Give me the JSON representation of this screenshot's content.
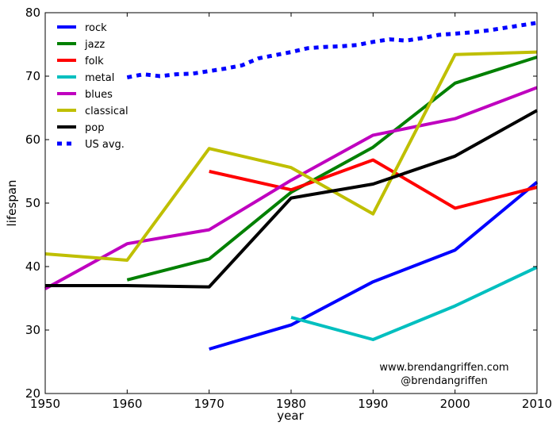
{
  "chart_data": {
    "type": "line",
    "title": "",
    "xlabel": "year",
    "ylabel": "lifespan",
    "xlim": [
      1950,
      2010
    ],
    "ylim": [
      20,
      80
    ],
    "xticks": [
      1950,
      1960,
      1970,
      1980,
      1990,
      2000,
      2010
    ],
    "yticks": [
      20,
      30,
      40,
      50,
      60,
      70,
      80
    ],
    "grid": false,
    "legend_position": "top-left",
    "annotations": [
      "www.brendangriffen.com",
      "@brendangriffen"
    ],
    "series": [
      {
        "name": "rock",
        "color": "#0000ff",
        "style": "solid",
        "x": [
          1970,
          1980,
          1990,
          2000,
          2010
        ],
        "y": [
          27.0,
          30.8,
          37.6,
          42.6,
          53.3
        ]
      },
      {
        "name": "jazz",
        "color": "#008000",
        "style": "solid",
        "x": [
          1960,
          1970,
          1980,
          1990,
          2000,
          2010
        ],
        "y": [
          37.9,
          41.2,
          51.7,
          58.8,
          68.9,
          73.0
        ]
      },
      {
        "name": "folk",
        "color": "#ff0000",
        "style": "solid",
        "x": [
          1970,
          1980,
          1990,
          2000,
          2010
        ],
        "y": [
          55.0,
          52.1,
          56.8,
          49.2,
          52.5
        ]
      },
      {
        "name": "metal",
        "color": "#00bfbf",
        "style": "solid",
        "x": [
          1980,
          1990,
          2000,
          2010
        ],
        "y": [
          32.0,
          28.5,
          33.8,
          39.9
        ]
      },
      {
        "name": "blues",
        "color": "#bf00bf",
        "style": "solid",
        "x": [
          1950,
          1960,
          1970,
          1980,
          1990,
          2000,
          2010
        ],
        "y": [
          36.5,
          43.6,
          45.8,
          53.6,
          60.7,
          63.3,
          68.2
        ]
      },
      {
        "name": "classical",
        "color": "#bfbf00",
        "style": "solid",
        "x": [
          1950,
          1960,
          1970,
          1980,
          1990,
          2000,
          2010
        ],
        "y": [
          42.0,
          41.0,
          58.6,
          55.6,
          48.3,
          73.4,
          73.8
        ]
      },
      {
        "name": "pop",
        "color": "#000000",
        "style": "solid",
        "x": [
          1950,
          1960,
          1970,
          1980,
          1990,
          2000,
          2010
        ],
        "y": [
          37.0,
          37.0,
          36.8,
          50.8,
          53.0,
          57.4,
          64.6
        ]
      },
      {
        "name": "US avg.",
        "color": "#0000ff",
        "style": "dotted",
        "x": [
          1960,
          1962,
          1964,
          1966,
          1968,
          1970,
          1972,
          1974,
          1976,
          1978,
          1980,
          1982,
          1984,
          1986,
          1988,
          1990,
          1992,
          1994,
          1996,
          1998,
          2000,
          2002,
          2004,
          2006,
          2008,
          2010
        ],
        "y": [
          69.8,
          70.3,
          70.0,
          70.3,
          70.4,
          70.8,
          71.2,
          71.7,
          72.8,
          73.3,
          73.8,
          74.4,
          74.6,
          74.7,
          74.9,
          75.4,
          75.8,
          75.6,
          76.0,
          76.5,
          76.7,
          76.9,
          77.2,
          77.6,
          78.0,
          78.4
        ]
      }
    ]
  }
}
